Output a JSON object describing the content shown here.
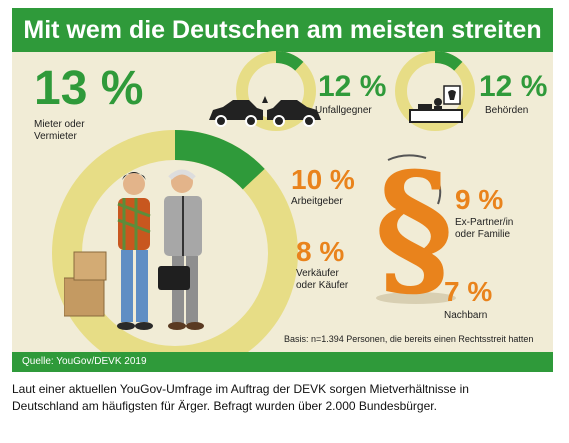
{
  "title": "Mit wem die Deutschen am meisten streiten",
  "source": "Quelle: YouGov/DEVK 2019",
  "basis": "Basis: n=1.394 Personen, die bereits einen Rechtsstreit hatten",
  "caption": "Laut einer aktuellen YouGov-Umfrage im Auftrag der DEVK sorgen Mietverhältnisse in Deutschland am häufigsten für Ärger. Befragt wurden über 2.000 Bundesbürger.",
  "colors": {
    "green": "#2f9a3a",
    "orange": "#e9831c",
    "ring_background": "#e7dd86",
    "panel": "#f1ecd6"
  },
  "chart_data": {
    "type": "bar",
    "unit": "%",
    "categories": [
      "Mieter oder Vermieter",
      "Unfallgegner",
      "Behörden",
      "Arbeitgeber",
      "Ex-Partner/in oder Familie",
      "Verkäufer oder Käufer",
      "Nachbarn"
    ],
    "values": [
      13,
      12,
      12,
      10,
      9,
      8,
      7
    ],
    "value_labels": [
      "13 %",
      "12 %",
      "12 %",
      "10 %",
      "9 %",
      "8 %",
      "7 %"
    ],
    "label_lines": [
      [
        "Mieter oder",
        "Vermieter"
      ],
      [
        "Unfallgegner"
      ],
      [
        "Behörden"
      ],
      [
        "Arbeitgeber"
      ],
      [
        "Ex-Partner/in",
        "oder Familie"
      ],
      [
        "Verkäufer",
        "oder Käufer"
      ],
      [
        "Nachbarn"
      ]
    ]
  },
  "illustrations": [
    "tenant-landlord-figures",
    "car-crash-icon",
    "authority-desk-icon",
    "paragraph-sign-icon"
  ]
}
